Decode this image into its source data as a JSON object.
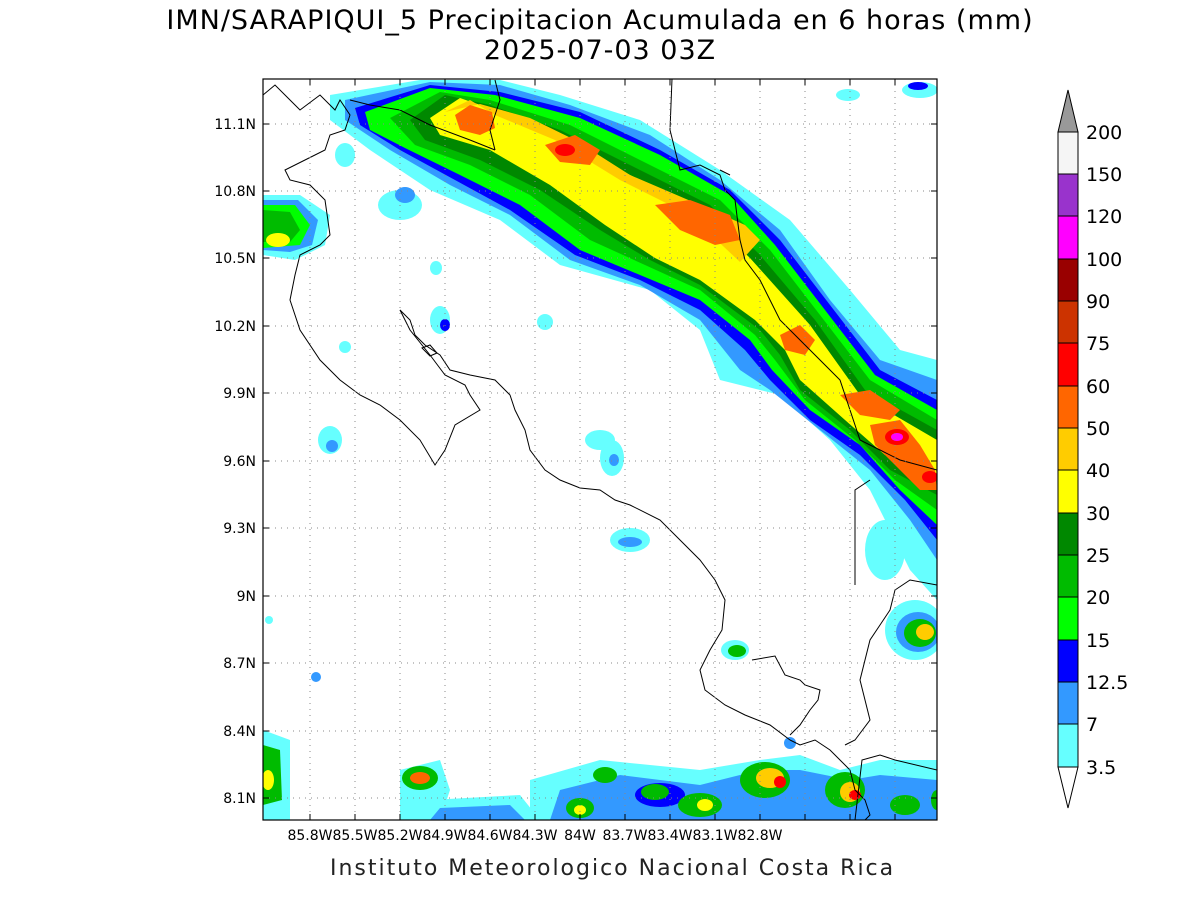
{
  "header": {
    "title": "IMN/SARAPIQUI_5 Precipitacion Acumulada en 6 horas (mm)",
    "subtitle": "2025-07-03 03Z"
  },
  "footer": {
    "credit": "Instituto Meteorologico Nacional Costa Rica"
  },
  "map": {
    "lat_labels": [
      "11.1N",
      "10.8N",
      "10.5N",
      "10.2N",
      "9.9N",
      "9.6N",
      "9.3N",
      "9N",
      "8.7N",
      "8.4N",
      "8.1N"
    ],
    "lon_labels": [
      "85.8W",
      "85.5W",
      "85.2W",
      "84.9W",
      "84.6W",
      "84.3W",
      "84W",
      "83.7W",
      "83.4W",
      "83.1W",
      "82.8W"
    ]
  },
  "colorbar": {
    "labels": [
      "200",
      "150",
      "120",
      "100",
      "90",
      "75",
      "60",
      "50",
      "40",
      "30",
      "25",
      "20",
      "15",
      "12.5",
      "7",
      "3.5"
    ],
    "colors": [
      "#f5f5f5",
      "#9933cc",
      "#ff00ff",
      "#990000",
      "#cc3300",
      "#ff0000",
      "#ff6600",
      "#ffcc00",
      "#ffff00",
      "#008800",
      "#00bb00",
      "#00ff00",
      "#0000ff",
      "#3399ff",
      "#66ffff"
    ]
  },
  "colors": {
    "c3": "#66ffff",
    "c7": "#3399ff",
    "c12": "#0000ff",
    "c15": "#00ff00",
    "c20": "#00bb00",
    "c25": "#008800",
    "c30": "#ffff00",
    "c40": "#ffcc00",
    "c50": "#ff6600",
    "c60": "#ff0000",
    "c120": "#ff00ff"
  }
}
